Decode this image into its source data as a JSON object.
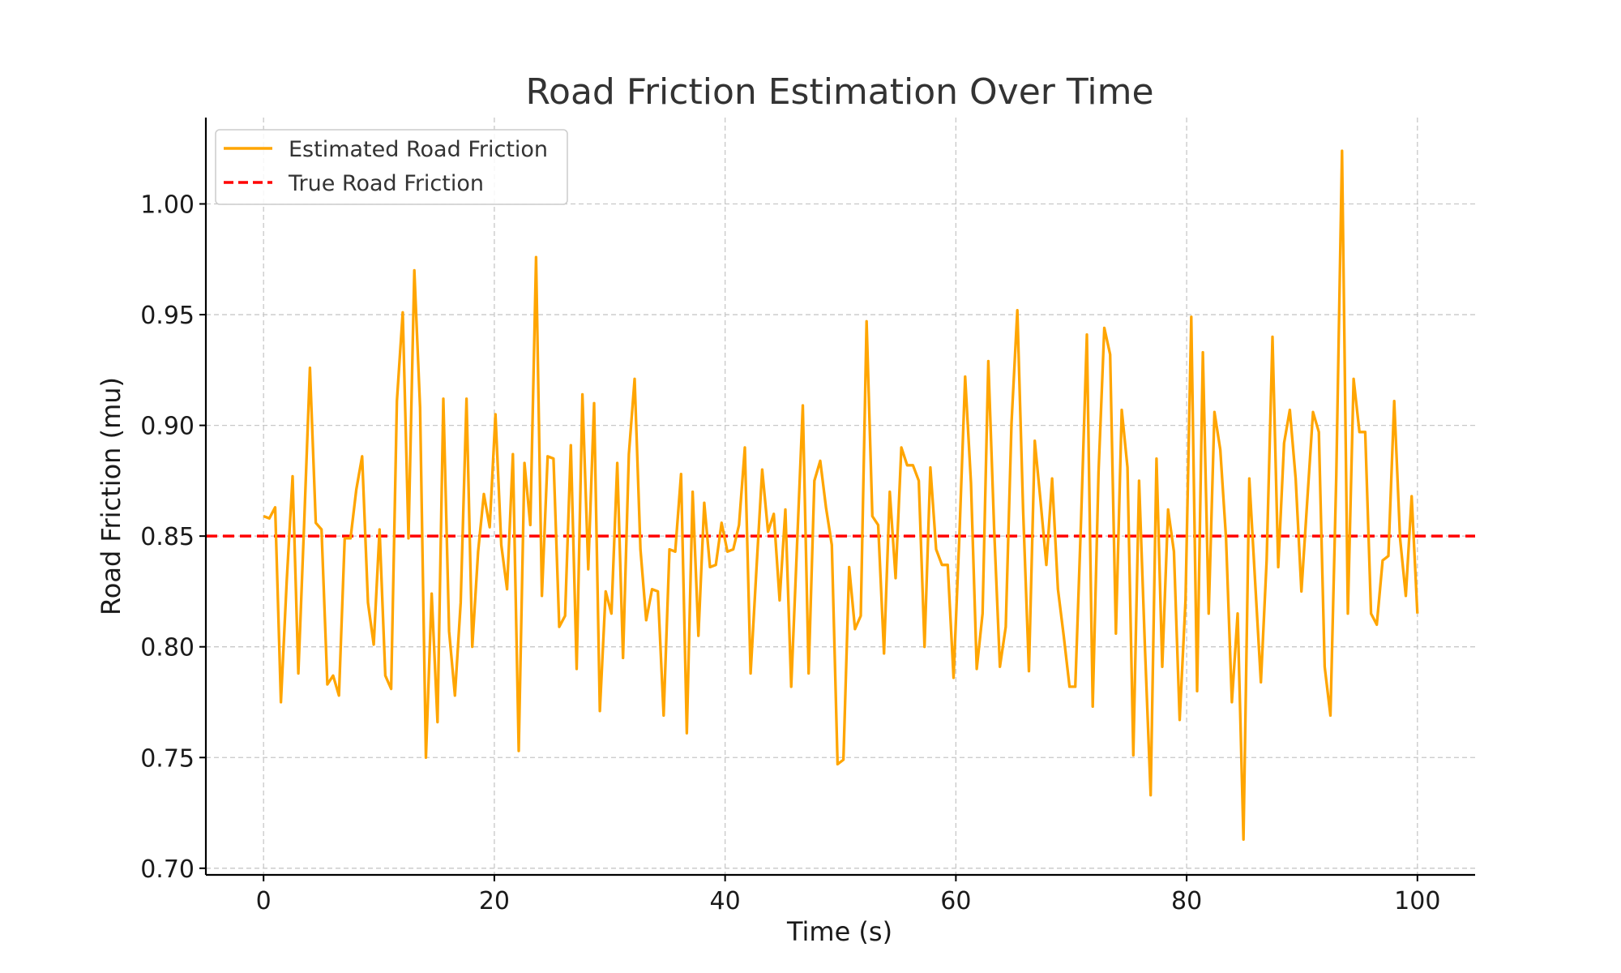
{
  "chart_data": {
    "type": "line",
    "title": "Road Friction Estimation Over Time",
    "xlabel": "Time (s)",
    "ylabel": "Road Friction (mu)",
    "xlim": [
      -5,
      105
    ],
    "ylim": [
      0.697,
      1.039
    ],
    "xticks": [
      0,
      20,
      40,
      60,
      80,
      100
    ],
    "yticks": [
      0.7,
      0.75,
      0.8,
      0.85,
      0.9,
      0.95,
      1.0
    ],
    "xtick_labels": [
      "0",
      "20",
      "40",
      "60",
      "80",
      "100"
    ],
    "ytick_labels": [
      "0.70",
      "0.75",
      "0.80",
      "0.85",
      "0.90",
      "0.95",
      "1.00"
    ],
    "grid": true,
    "legend_position": "top-left",
    "series": [
      {
        "name": "Estimated Road Friction",
        "color": "#FFA500",
        "style": "solid",
        "y": [
          0.859,
          0.858,
          0.863,
          0.775,
          0.83,
          0.877,
          0.788,
          0.856,
          0.926,
          0.856,
          0.853,
          0.783,
          0.787,
          0.778,
          0.849,
          0.849,
          0.871,
          0.886,
          0.82,
          0.801,
          0.853,
          0.787,
          0.781,
          0.911,
          0.951,
          0.849,
          0.97,
          0.908,
          0.75,
          0.824,
          0.766,
          0.912,
          0.807,
          0.778,
          0.82,
          0.912,
          0.8,
          0.843,
          0.869,
          0.854,
          0.905,
          0.846,
          0.826,
          0.887,
          0.753,
          0.883,
          0.855,
          0.976,
          0.823,
          0.886,
          0.885,
          0.809,
          0.814,
          0.891,
          0.79,
          0.914,
          0.835,
          0.91,
          0.771,
          0.825,
          0.815,
          0.883,
          0.795,
          0.887,
          0.921,
          0.844,
          0.812,
          0.826,
          0.825,
          0.769,
          0.844,
          0.843,
          0.878,
          0.761,
          0.87,
          0.805,
          0.865,
          0.836,
          0.837,
          0.856,
          0.843,
          0.844,
          0.855,
          0.89,
          0.788,
          0.835,
          0.88,
          0.852,
          0.86,
          0.821,
          0.862,
          0.782,
          0.845,
          0.909,
          0.788,
          0.875,
          0.884,
          0.863,
          0.846,
          0.747,
          0.749,
          0.836,
          0.808,
          0.814,
          0.947,
          0.859,
          0.855,
          0.797,
          0.87,
          0.831,
          0.89,
          0.882,
          0.882,
          0.875,
          0.8,
          0.881,
          0.844,
          0.837,
          0.837,
          0.786,
          0.85,
          0.922,
          0.874,
          0.79,
          0.815,
          0.929,
          0.853,
          0.791,
          0.809,
          0.901,
          0.952,
          0.862,
          0.789,
          0.893,
          0.866,
          0.837,
          0.876,
          0.826,
          0.805,
          0.782,
          0.782,
          0.858,
          0.941,
          0.773,
          0.879,
          0.944,
          0.932,
          0.806,
          0.907,
          0.881,
          0.751,
          0.875,
          0.8,
          0.733,
          0.885,
          0.791,
          0.862,
          0.843,
          0.767,
          0.821,
          0.949,
          0.78,
          0.933,
          0.815,
          0.906,
          0.889,
          0.849,
          0.775,
          0.815,
          0.713,
          0.876,
          0.83,
          0.784,
          0.839,
          0.94,
          0.836,
          0.892,
          0.907,
          0.876,
          0.825,
          0.866,
          0.906,
          0.897,
          0.791,
          0.769,
          0.877,
          1.024,
          0.815,
          0.921,
          0.897,
          0.897,
          0.815,
          0.81,
          0.839,
          0.841,
          0.911,
          0.849,
          0.823,
          0.868,
          0.815
        ]
      },
      {
        "name": "True Road Friction",
        "color": "#FF0000",
        "style": "dashed",
        "y": [
          0.85,
          0.85
        ]
      }
    ]
  }
}
